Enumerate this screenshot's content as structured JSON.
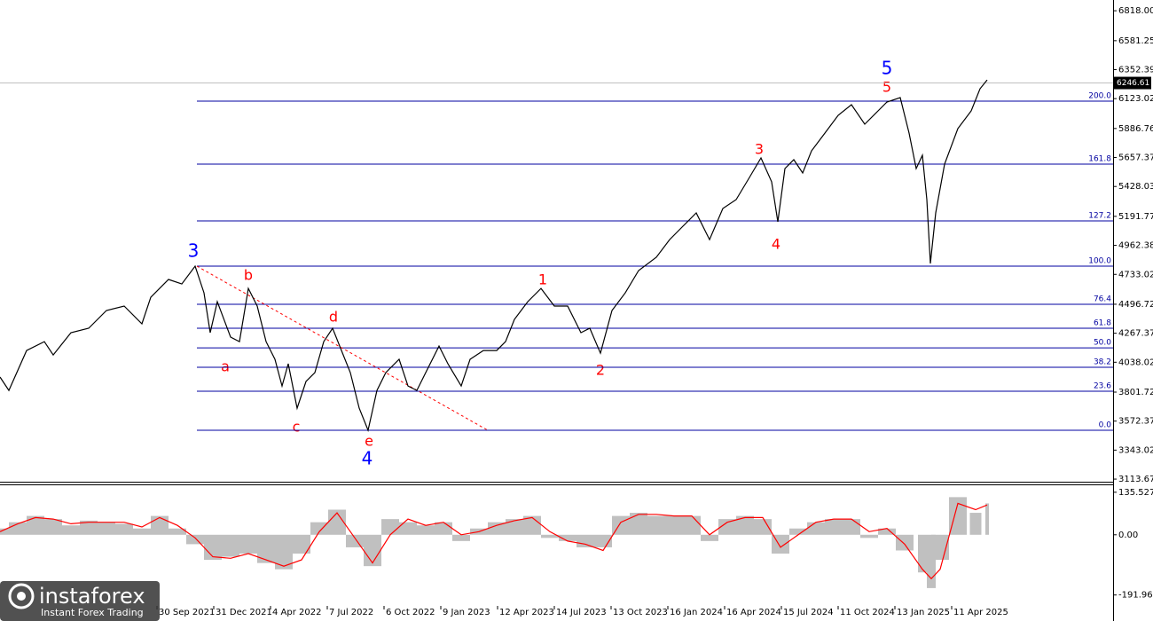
{
  "chart_data": [
    {
      "type": "line",
      "x": [
        0,
        10,
        30,
        50,
        60,
        80,
        100,
        120,
        140,
        160,
        170,
        190,
        205,
        220,
        230,
        237,
        245,
        260,
        270,
        280,
        290,
        300,
        310,
        318,
        325,
        335,
        345,
        355,
        365,
        375,
        385,
        395,
        405,
        415,
        425,
        435,
        450,
        460,
        470,
        480,
        495,
        505,
        520,
        530,
        545,
        560,
        570,
        580,
        595,
        610,
        625,
        640,
        655,
        665,
        677,
        690,
        705,
        720,
        740,
        755,
        770,
        785,
        800,
        815,
        830,
        845,
        858,
        870,
        877,
        885,
        895,
        905,
        915,
        930,
        945,
        960,
        975,
        990,
        1000,
        1015,
        1025,
        1033,
        1040,
        1045,
        1049,
        1055,
        1065,
        1080,
        1095,
        1105,
        1113
      ],
      "values": [
        3921,
        3815,
        4131,
        4201,
        4096,
        4272,
        4307,
        4447,
        4482,
        4342,
        4552,
        4693,
        4657,
        4798,
        4587,
        4272,
        4517,
        4237,
        4201,
        4622,
        4482,
        4201,
        4061,
        3850,
        4026,
        3675,
        3886,
        3956,
        4201,
        4307,
        4131,
        3956,
        3675,
        3500,
        3815,
        3956,
        4061,
        3850,
        3815,
        3956,
        4166,
        4026,
        3850,
        4061,
        4131,
        4131,
        4201,
        4377,
        4517,
        4622,
        4482,
        4482,
        4272,
        4307,
        4110,
        4447,
        4587,
        4763,
        4868,
        5008,
        5114,
        5219,
        5008,
        5254,
        5324,
        5500,
        5654,
        5465,
        5149,
        5570,
        5640,
        5535,
        5710,
        5850,
        5991,
        6075,
        5921,
        6026,
        6096,
        6131,
        5850,
        5570,
        5675,
        5324,
        4819,
        5219,
        5605,
        5886,
        6026,
        6201,
        6271
      ],
      "color": "#000000",
      "xlim": [
        0,
        1255
      ],
      "xticks": [
        {
          "value": 177,
          "label": "30 Sep 2021"
        },
        {
          "value": 241,
          "label": "31 Dec 2021"
        },
        {
          "value": 305,
          "label": "4 Apr 2022"
        },
        {
          "value": 369,
          "label": "7 Jul 2022"
        },
        {
          "value": 433,
          "label": "6 Oct 2022"
        },
        {
          "value": 497,
          "label": "9 Jan 2023"
        },
        {
          "value": 561,
          "label": "12 Apr 2023"
        },
        {
          "value": 625,
          "label": "14 Jul 2023"
        },
        {
          "value": 689,
          "label": "13 Oct 2023"
        },
        {
          "value": 753,
          "label": "16 Jan 2024"
        },
        {
          "value": 817,
          "label": "16 Apr 2024"
        },
        {
          "value": 881,
          "label": "15 Jul 2024"
        },
        {
          "value": 945,
          "label": "11 Oct 2024"
        },
        {
          "value": 1009,
          "label": "13 Jan 2025"
        },
        {
          "value": 1073,
          "label": "11 Apr 2025"
        }
      ],
      "ylim": [
        3093,
        6903
      ],
      "yticks": [
        {
          "value": 6818,
          "label": "6818.00"
        },
        6581.25,
        6352.39,
        6123.02,
        5886.76,
        5657.37,
        5428.03,
        5191.77,
        4962.38,
        4733.02,
        4496.72,
        4267.37,
        4038.02,
        3801.72,
        3572.37,
        3343.02,
        3113.67
      ],
      "current_price": 6246.61,
      "levels": [
        {
          "label": "200.0",
          "value": 6103
        },
        {
          "label": "161.8",
          "value": 5605
        },
        {
          "label": "127.2",
          "value": 5156
        },
        {
          "label": "100.0",
          "value": 4798
        },
        {
          "label": "76.4",
          "value": 4496
        },
        {
          "label": "61.8",
          "value": 4307
        },
        {
          "label": "50.0",
          "value": 4152
        },
        {
          "label": "38.2",
          "value": 3998
        },
        {
          "label": "23.6",
          "value": 3809
        },
        {
          "label": "0.0",
          "value": 3500
        }
      ],
      "levels_start": 222,
      "level_color": "#0000a0",
      "trendline": {
        "x": [
          222,
          550
        ],
        "y": [
          4798,
          3500
        ],
        "color": "#ff0000"
      },
      "annotations": [
        {
          "text": "3",
          "color": "#0000ff"
        },
        {
          "text": "b",
          "color": "#ff0000"
        },
        {
          "text": "a",
          "color": "#ff0000"
        },
        {
          "text": "d",
          "color": "#ff0000"
        },
        {
          "text": "c",
          "color": "#ff0000"
        },
        {
          "text": "e",
          "color": "#ff0000"
        },
        {
          "text": "4",
          "color": "#0000ff"
        },
        {
          "text": "1",
          "color": "#ff0000"
        },
        {
          "text": "2",
          "color": "#ff0000"
        },
        {
          "text": "3",
          "color": "#ff0000"
        },
        {
          "text": "4",
          "color": "#ff0000"
        },
        {
          "text": "5",
          "color": "#ff0000"
        },
        {
          "text": "5",
          "color": "#0000ff"
        }
      ]
    },
    {
      "type": "bar",
      "x": [
        0,
        20,
        40,
        60,
        80,
        100,
        120,
        140,
        160,
        180,
        200,
        220,
        240,
        260,
        280,
        300,
        320,
        340,
        360,
        380,
        400,
        420,
        440,
        460,
        480,
        500,
        520,
        540,
        560,
        580,
        600,
        620,
        640,
        660,
        680,
        700,
        720,
        740,
        760,
        780,
        800,
        820,
        840,
        860,
        880,
        900,
        920,
        940,
        960,
        980,
        1000,
        1020,
        1040,
        1050,
        1060,
        1080,
        1100,
        1113
      ],
      "values": [
        20,
        40,
        60,
        50,
        30,
        45,
        40,
        35,
        20,
        60,
        20,
        -30,
        -80,
        -70,
        -60,
        -90,
        -110,
        -60,
        40,
        80,
        -40,
        -100,
        50,
        40,
        30,
        40,
        -20,
        20,
        40,
        50,
        60,
        -10,
        -20,
        -40,
        -40,
        60,
        70,
        60,
        60,
        60,
        -20,
        50,
        60,
        50,
        -60,
        20,
        40,
        50,
        50,
        -10,
        20,
        -50,
        -120,
        -170,
        -80,
        120,
        70,
        100
      ],
      "color": "#c0c0c0",
      "signal": {
        "values": [
          10,
          35,
          55,
          50,
          35,
          40,
          40,
          40,
          25,
          55,
          30,
          -10,
          -70,
          -75,
          -60,
          -80,
          -100,
          -80,
          10,
          70,
          -10,
          -90,
          0,
          50,
          30,
          40,
          0,
          10,
          30,
          45,
          55,
          10,
          -20,
          -30,
          -50,
          40,
          65,
          65,
          60,
          60,
          0,
          40,
          55,
          55,
          -40,
          0,
          40,
          50,
          50,
          10,
          20,
          -30,
          -110,
          -140,
          -110,
          100,
          80,
          95
        ],
        "color": "#ff0000"
      },
      "xlim": [
        0,
        1255
      ],
      "ylim": [
        -224,
        155
      ],
      "yticks": [
        135.527,
        {
          "value": 0,
          "label": "0.00"
        },
        -191.966
      ]
    }
  ],
  "watermark": {
    "brand": "instaforex",
    "tagline": "Instant Forex Trading"
  }
}
